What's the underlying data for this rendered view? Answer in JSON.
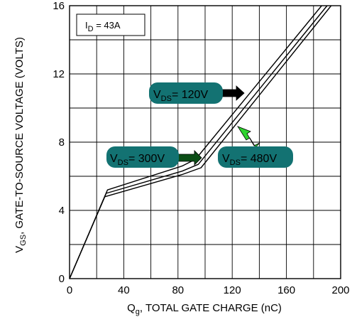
{
  "chart_data": {
    "type": "line",
    "xlabel": {
      "main": "Q",
      "sub": "g",
      "rest": ", TOTAL GATE CHARGE (nC)"
    },
    "ylabel": {
      "main": "V",
      "sub": "GS",
      "rest": ",  GATE-TO-SOURCE  VOLTAGE (VOLTS)"
    },
    "xlim": [
      0,
      200
    ],
    "ylim": [
      0,
      16
    ],
    "xticks": [
      0,
      40,
      80,
      120,
      160,
      200
    ],
    "yticks": [
      0,
      4,
      8,
      12,
      16
    ],
    "grid": true,
    "annotation": {
      "main": "I",
      "sub": "D",
      "rest": " = 43A"
    },
    "series": [
      {
        "name": "V_DS = 120V",
        "x": [
          0,
          28,
          83,
          93,
          186
        ],
        "y": [
          0,
          5.2,
          6.6,
          7.0,
          16.0
        ]
      },
      {
        "name": "V_DS = 300V",
        "x": [
          0,
          27,
          83,
          95,
          190
        ],
        "y": [
          0,
          5.0,
          6.3,
          6.7,
          16.0
        ]
      },
      {
        "name": "V_DS = 480V",
        "x": [
          0,
          26,
          83,
          97,
          193
        ],
        "y": [
          0,
          4.8,
          6.1,
          6.5,
          16.0
        ]
      }
    ],
    "callouts": [
      {
        "main": "V",
        "sub": "DS",
        "rest": "= 120V",
        "arrow_color": "#000000"
      },
      {
        "main": "V",
        "sub": "DS",
        "rest": "= 300V",
        "arrow_color": "#0b4d16"
      },
      {
        "main": "V",
        "sub": "DS",
        "rest": "= 480V",
        "arrow_color": "#2fd32f"
      }
    ],
    "colors": {
      "callout_fill": "#137272",
      "line": "#000000",
      "grid": "#000000"
    }
  }
}
